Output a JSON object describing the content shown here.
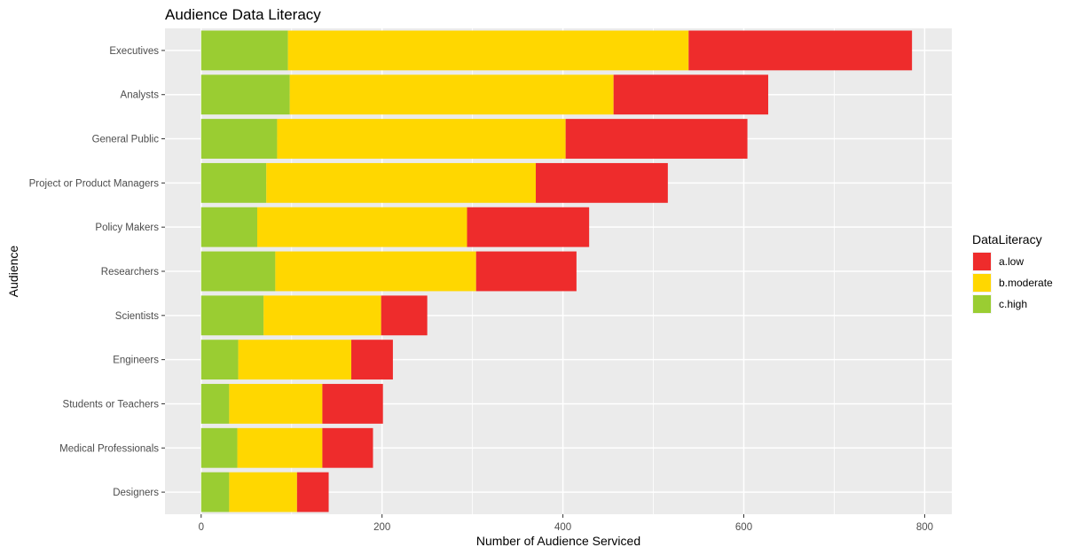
{
  "chart_data": {
    "type": "bar",
    "orientation": "horizontal",
    "stacked": true,
    "title": "Audience Data Literacy",
    "xlabel": "Number of Audience Serviced",
    "ylabel": "Audience",
    "xlim": [
      -40,
      830
    ],
    "xticks": [
      0,
      200,
      400,
      600,
      800
    ],
    "xtick_labels": [
      "0",
      "200",
      "400",
      "600",
      "800"
    ],
    "grid": true,
    "legend_placement": "right",
    "legend_title": "DataLiteracy",
    "categories": [
      "Executives",
      "Analysts",
      "General Public",
      "Project or Product Managers",
      "Policy Makers",
      "Researchers",
      "Scientists",
      "Engineers",
      "Students or Teachers",
      "Medical Professionals",
      "Designers"
    ],
    "series": [
      {
        "name": "c.high",
        "color": "#9acd32",
        "values": [
          96,
          98,
          84,
          72,
          62,
          82,
          69,
          41,
          31,
          40,
          31
        ]
      },
      {
        "name": "b.moderate",
        "color": "#ffd700",
        "values": [
          443,
          358,
          319,
          298,
          232,
          222,
          130,
          125,
          103,
          94,
          75
        ]
      },
      {
        "name": "a.low",
        "color": "#ee2c2c",
        "values": [
          247,
          171,
          201,
          146,
          135,
          111,
          51,
          46,
          67,
          56,
          35
        ]
      }
    ],
    "legend_order": [
      "a.low",
      "b.moderate",
      "c.high"
    ]
  }
}
